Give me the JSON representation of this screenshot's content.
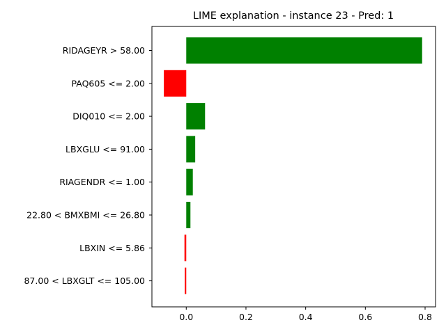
{
  "chart_data": {
    "type": "bar",
    "orientation": "horizontal",
    "title": "LIME explanation - instance 23 - Pred: 1",
    "xlabel": "",
    "ylabel": "",
    "xlim": [
      -0.115,
      0.835
    ],
    "xticks": [
      0.0,
      0.2,
      0.4,
      0.6,
      0.8
    ],
    "xtick_labels": [
      "0.0",
      "0.2",
      "0.4",
      "0.6",
      "0.8"
    ],
    "grid": false,
    "legend": "none",
    "colors": {
      "positive": "#008000",
      "negative": "#ff0000"
    },
    "categories": [
      "RIDAGEYR > 58.00",
      "PAQ605 <= 2.00",
      "DIQ010 <= 2.00",
      "LBXGLU <= 91.00",
      "RIAGENDR <= 1.00",
      "22.80 < BMXBMI <= 26.80",
      "LBXIN <= 5.86",
      "87.00 < LBXGLT <= 105.00"
    ],
    "values": [
      0.79,
      -0.075,
      0.063,
      0.03,
      0.022,
      0.014,
      -0.006,
      -0.005
    ]
  }
}
